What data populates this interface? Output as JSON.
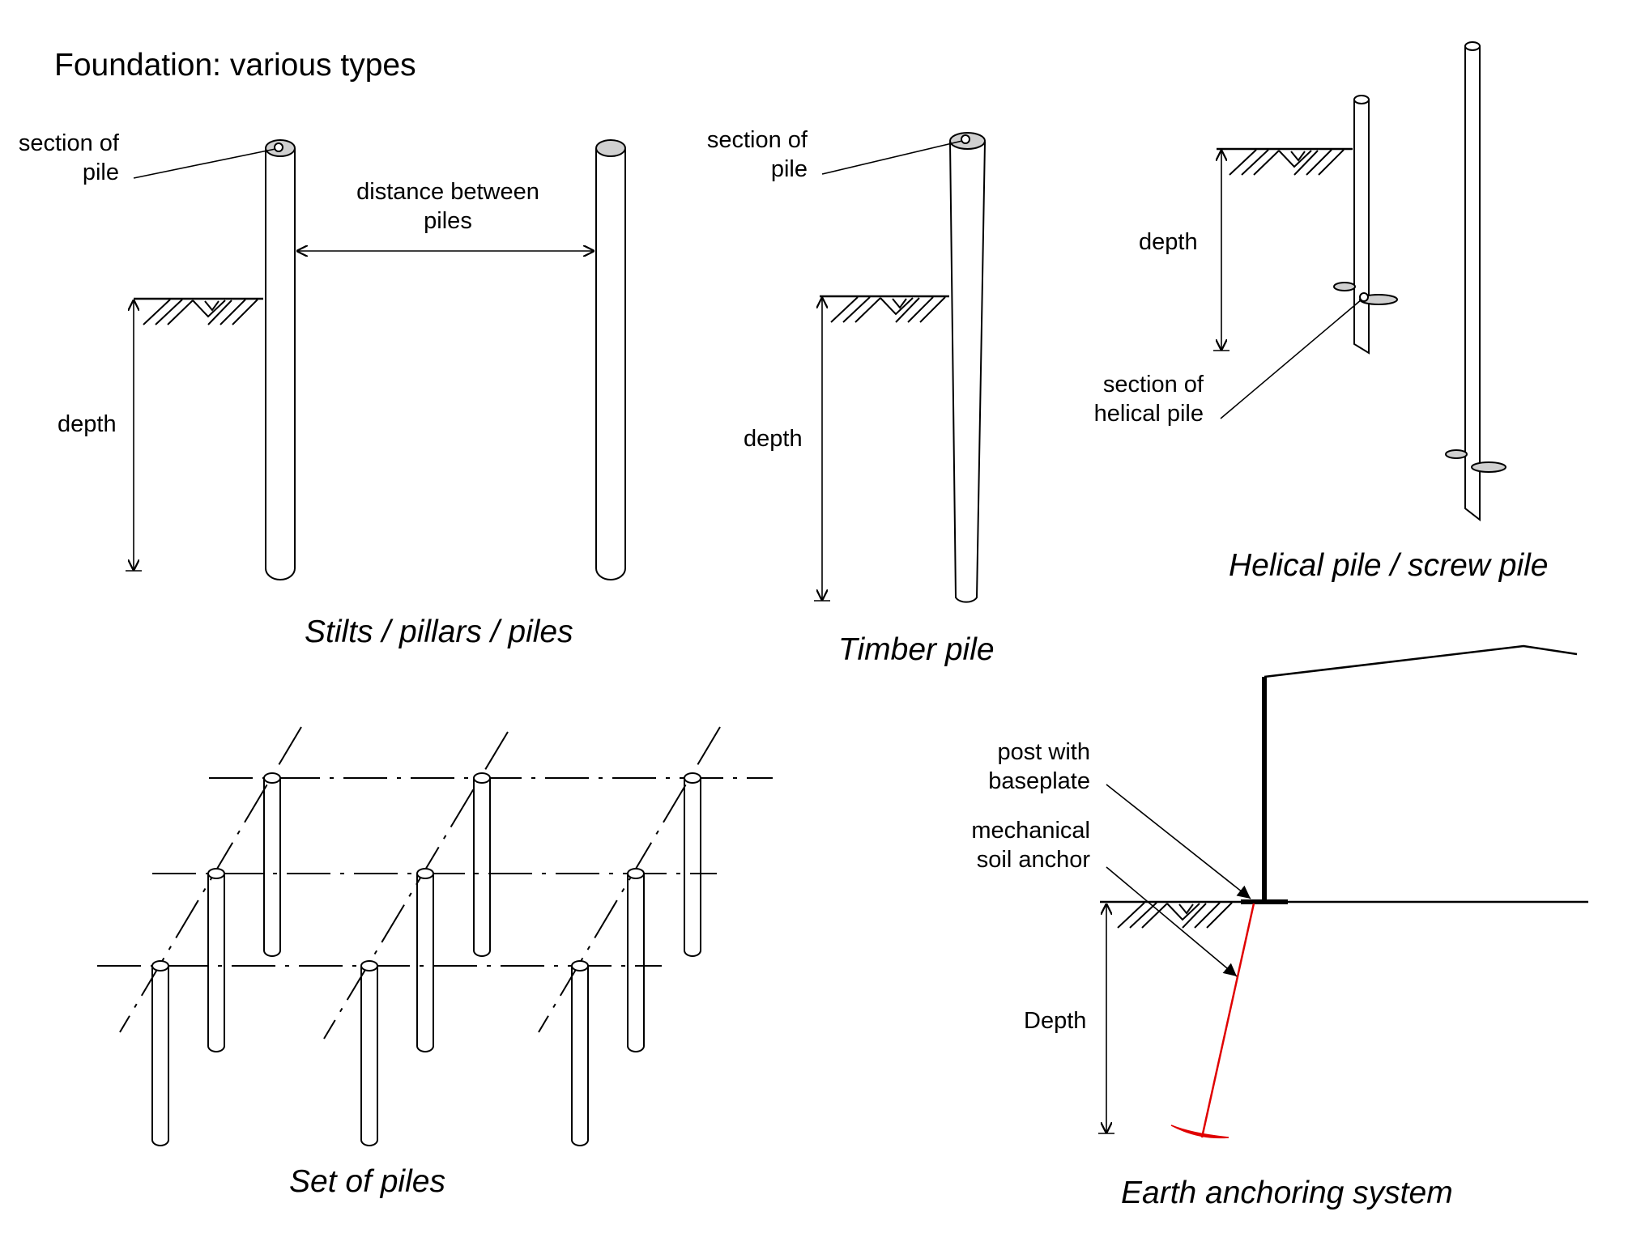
{
  "title": "Foundation: various types",
  "stilts": {
    "section_label": [
      "section of",
      "pile"
    ],
    "distance_label": [
      "distance between",
      "piles"
    ],
    "depth_label": "depth",
    "caption": "Stilts / pillars / piles"
  },
  "timber": {
    "section_label": [
      "section of",
      "pile"
    ],
    "depth_label": "depth",
    "caption": "Timber pile"
  },
  "helical": {
    "depth_label": "depth",
    "section_label": [
      "section of",
      "helical pile"
    ],
    "caption": "Helical pile / screw pile"
  },
  "set": {
    "caption": "Set of piles"
  },
  "earth": {
    "post_label": [
      "post with",
      "baseplate"
    ],
    "anchor_label": [
      "mechanical",
      "soil anchor"
    ],
    "depth_label": "Depth",
    "caption": "Earth anchoring system"
  },
  "colors": {
    "ink": "#000000",
    "section_fill": "#d0d0d0",
    "anchor": "#e00000"
  }
}
